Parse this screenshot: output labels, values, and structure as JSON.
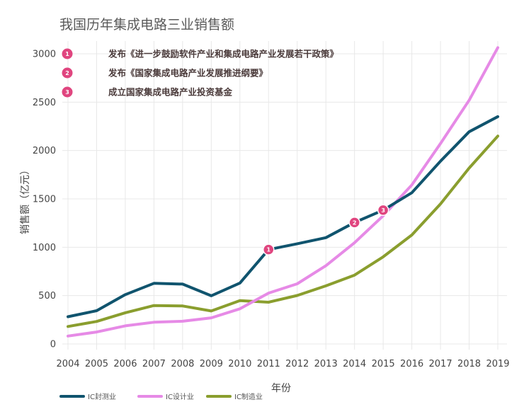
{
  "chart_data": {
    "type": "line",
    "title": "我国历年集成电路三业销售额",
    "xlabel": "年份",
    "ylabel": "销售额（亿元）",
    "x": [
      2004,
      2005,
      2006,
      2007,
      2008,
      2009,
      2010,
      2011,
      2012,
      2013,
      2014,
      2015,
      2016,
      2017,
      2018,
      2019
    ],
    "x_tick_labels": [
      "2004",
      "2005",
      "2006",
      "2007",
      "2008",
      "2009",
      "2010",
      "2011",
      "2012",
      "2013",
      "2014",
      "2015",
      "2016",
      "2017",
      "2018",
      "2019"
    ],
    "ylim": [
      0,
      3000
    ],
    "y_ticks": [
      0,
      500,
      1000,
      1500,
      2000,
      2500,
      3000
    ],
    "y_tick_labels": [
      "0",
      "500",
      "1000",
      "1500",
      "2000",
      "2500",
      "3000"
    ],
    "grid": true,
    "series": [
      {
        "name": "IC封测业",
        "color": "#10546e",
        "values": [
          282,
          344,
          510,
          627,
          619,
          498,
          630,
          976,
          1036,
          1099,
          1256,
          1384,
          1564,
          1890,
          2194,
          2350
        ]
      },
      {
        "name": "IC设计业",
        "color": "#e68ae6",
        "values": [
          82,
          124,
          187,
          225,
          235,
          270,
          364,
          526,
          622,
          809,
          1047,
          1325,
          1644,
          2073,
          2519,
          3064
        ]
      },
      {
        "name": "IC制造业",
        "color": "#8a9e2e",
        "values": [
          181,
          233,
          323,
          397,
          393,
          341,
          448,
          432,
          501,
          601,
          712,
          901,
          1127,
          1448,
          1818,
          2149
        ]
      }
    ],
    "legend": {
      "position": "bottom-left"
    },
    "annotations": [
      {
        "number": "1",
        "text": "发布《进一步鼓励软件产业和集成电路产业发展若干政策》",
        "marker_x": 2011,
        "marker_y": 976
      },
      {
        "number": "2",
        "text": "发布《国家集成电路产业发展推进纲要》",
        "marker_x": 2014,
        "marker_y": 1256
      },
      {
        "number": "3",
        "text": "成立国家集成电路产业投资基金",
        "marker_x": 2015,
        "marker_y": 1384
      }
    ],
    "annotation_color": "#e0457f"
  }
}
